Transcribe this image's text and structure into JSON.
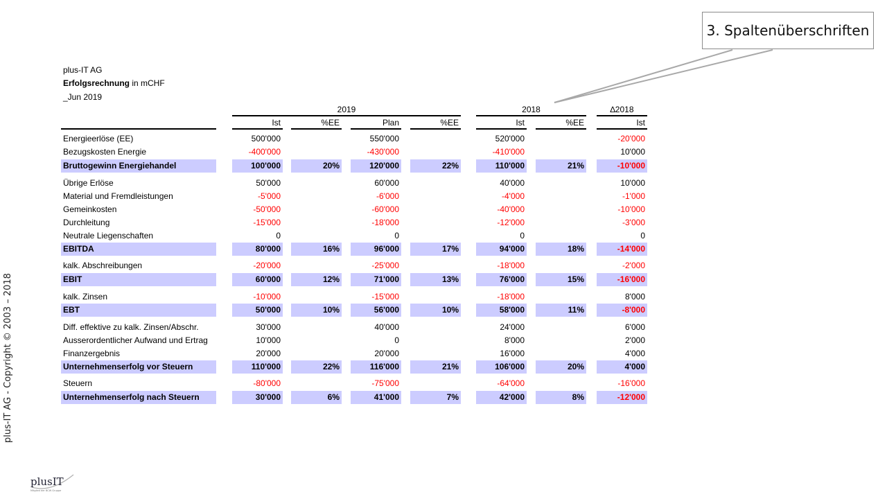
{
  "sidebar": {
    "copyright": "plus-IT AG - Copyright © 2003 – 2018"
  },
  "callout": {
    "text": "3. Spaltenüberschriften"
  },
  "header": {
    "company": "plus-IT AG",
    "title_bold": "Erfolgsrechnung",
    "title_rest": " in mCHF",
    "period": "_Jun 2019"
  },
  "groups": {
    "y2019": "2019",
    "y2018": "2018",
    "delta": "∆2018"
  },
  "columns": [
    "Ist",
    "%EE",
    "Plan",
    "%EE",
    "Ist",
    "%EE",
    "Ist"
  ],
  "rows": [
    {
      "label": "Energieerlöse (EE)",
      "values": [
        "500'000",
        "",
        "550'000",
        "",
        "520'000",
        "",
        "-20'000"
      ],
      "total": false
    },
    {
      "label": "Bezugskosten Energie",
      "values": [
        "-400'000",
        "",
        "-430'000",
        "",
        "-410'000",
        "",
        "10'000"
      ],
      "total": false
    },
    {
      "label": "Bruttogewinn Energiehandel",
      "values": [
        "100'000",
        "20%",
        "120'000",
        "22%",
        "110'000",
        "21%",
        "-10'000"
      ],
      "total": true
    },
    {
      "label": "Übrige Erlöse",
      "values": [
        "50'000",
        "",
        "60'000",
        "",
        "40'000",
        "",
        "10'000"
      ],
      "total": false
    },
    {
      "label": "Material und Fremdleistungen",
      "values": [
        "-5'000",
        "",
        "-6'000",
        "",
        "-4'000",
        "",
        "-1'000"
      ],
      "total": false
    },
    {
      "label": "Gemeinkosten",
      "values": [
        "-50'000",
        "",
        "-60'000",
        "",
        "-40'000",
        "",
        "-10'000"
      ],
      "total": false
    },
    {
      "label": "Durchleitung",
      "values": [
        "-15'000",
        "",
        "-18'000",
        "",
        "-12'000",
        "",
        "-3'000"
      ],
      "total": false
    },
    {
      "label": "Neutrale Liegenschaften",
      "values": [
        "0",
        "",
        "0",
        "",
        "0",
        "",
        "0"
      ],
      "total": false
    },
    {
      "label": "EBITDA",
      "values": [
        "80'000",
        "16%",
        "96'000",
        "17%",
        "94'000",
        "18%",
        "-14'000"
      ],
      "total": true
    },
    {
      "label": "kalk. Abschreibungen",
      "values": [
        "-20'000",
        "",
        "-25'000",
        "",
        "-18'000",
        "",
        "-2'000"
      ],
      "total": false
    },
    {
      "label": "EBIT",
      "values": [
        "60'000",
        "12%",
        "71'000",
        "13%",
        "76'000",
        "15%",
        "-16'000"
      ],
      "total": true
    },
    {
      "label": "kalk. Zinsen",
      "values": [
        "-10'000",
        "",
        "-15'000",
        "",
        "-18'000",
        "",
        "8'000"
      ],
      "total": false
    },
    {
      "label": "EBT",
      "values": [
        "50'000",
        "10%",
        "56'000",
        "10%",
        "58'000",
        "11%",
        "-8'000"
      ],
      "total": true
    },
    {
      "label": "Diff. effektive zu kalk. Zinsen/Abschr.",
      "values": [
        "30'000",
        "",
        "40'000",
        "",
        "24'000",
        "",
        "6'000"
      ],
      "total": false
    },
    {
      "label": "Ausserordentlicher Aufwand und Ertrag",
      "values": [
        "10'000",
        "",
        "0",
        "",
        "8'000",
        "",
        "2'000"
      ],
      "total": false
    },
    {
      "label": "Finanzergebnis",
      "values": [
        "20'000",
        "",
        "20'000",
        "",
        "16'000",
        "",
        "4'000"
      ],
      "total": false
    },
    {
      "label": "Unternehmenserfolg vor Steuern",
      "values": [
        "110'000",
        "22%",
        "116'000",
        "21%",
        "106'000",
        "20%",
        "4'000"
      ],
      "total": true
    },
    {
      "label": "Steuern",
      "values": [
        "-80'000",
        "",
        "-75'000",
        "",
        "-64'000",
        "",
        "-16'000"
      ],
      "total": false
    },
    {
      "label": "Unternehmenserfolg nach Steuern",
      "values": [
        "30'000",
        "6%",
        "41'000",
        "7%",
        "42'000",
        "8%",
        "-12'000"
      ],
      "total": true
    }
  ],
  "logo": {
    "text": "plusIT",
    "tagline": "Mitglied der BCW Gruppe"
  },
  "colors": {
    "total_bg": "#ccccff",
    "negative": "#ff0000"
  }
}
